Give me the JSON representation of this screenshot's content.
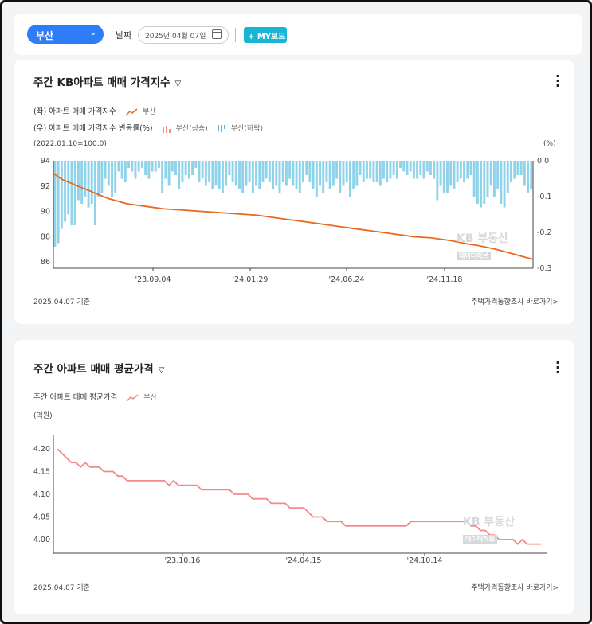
{
  "header": {
    "region": "부산",
    "date_label": "날짜",
    "date_value": "2025년 04월 07일",
    "mybtn": "+ MY보드"
  },
  "card1": {
    "title": "주간 KB아파트 매매 가격지수",
    "legend1": "(좌) 아파트 매매 가격지수",
    "legend1_name": "부산",
    "legend2": "(우) 아파트 매매 가격지수 변동률(%)",
    "legend2_up": "부산(상승)",
    "legend2_down": "부산(하락)",
    "left_unit": "(2022.01.10=100.0)",
    "right_unit": "(%)",
    "footer_date": "2025.04.07 기준",
    "footer_link": "주택가격동향조사 바로가기>",
    "watermark": "KB 부동산",
    "watermark_sub": "데이터허브"
  },
  "card2": {
    "title": "주간 아파트 매매 평균가격",
    "legend": "주간 아파트 매매 평균가격",
    "legend_name": "부산",
    "unit": "(억원)",
    "footer_date": "2025.04.07 기준",
    "footer_link": "주택가격동향조사 바로가기>",
    "watermark": "KB 부동산",
    "watermark_sub": "데이터허브"
  },
  "colors": {
    "line1": "#e86a1f",
    "bar": "#8fd3ea",
    "line2": "#f28a8a",
    "accent": "#2f7df6",
    "mybtn": "#16b6d4"
  },
  "chart_data": [
    {
      "type": "bar+line",
      "x_ticks": [
        "'23.09.04",
        "'24.01.29",
        "'24.06.24",
        "'24.11.18"
      ],
      "ylim_left": [
        85.5,
        94
      ],
      "yticks_left": [
        "94",
        "92",
        "90",
        "88",
        "86"
      ],
      "ylim_right": [
        -0.3,
        0.0
      ],
      "yticks_right": [
        "0.0",
        "-0.1",
        "-0.2",
        "-0.3"
      ],
      "line": [
        93.0,
        92.5,
        92.2,
        91.9,
        91.6,
        91.3,
        91.0,
        90.8,
        90.6,
        90.5,
        90.4,
        90.3,
        90.2,
        90.15,
        90.1,
        90.05,
        90.0,
        89.95,
        89.9,
        89.85,
        89.8,
        89.75,
        89.7,
        89.6,
        89.5,
        89.4,
        89.3,
        89.2,
        89.1,
        89.0,
        88.9,
        88.8,
        88.7,
        88.6,
        88.5,
        88.4,
        88.3,
        88.2,
        88.1,
        88.0,
        87.95,
        87.9,
        87.8,
        87.7,
        87.55,
        87.4,
        87.3,
        87.15,
        87.0,
        86.8,
        86.6,
        86.4,
        86.2
      ],
      "bars": [
        -0.24,
        -0.23,
        -0.19,
        -0.17,
        -0.15,
        -0.18,
        -0.18,
        -0.11,
        -0.12,
        -0.1,
        -0.13,
        -0.12,
        -0.18,
        -0.1,
        -0.09,
        -0.05,
        -0.07,
        -0.1,
        -0.09,
        -0.03,
        -0.05,
        -0.06,
        -0.02,
        -0.03,
        -0.05,
        -0.03,
        -0.02,
        -0.04,
        -0.05,
        -0.03,
        -0.03,
        -0.02,
        -0.09,
        -0.05,
        -0.07,
        -0.03,
        -0.04,
        -0.08,
        -0.06,
        -0.04,
        -0.05,
        -0.04,
        -0.02,
        -0.06,
        -0.05,
        -0.07,
        -0.06,
        -0.08,
        -0.07,
        -0.08,
        -0.09,
        -0.07,
        -0.04,
        -0.06,
        -0.07,
        -0.08,
        -0.09,
        -0.07,
        -0.06,
        -0.09,
        -0.07,
        -0.08,
        -0.06,
        -0.05,
        -0.06,
        -0.08,
        -0.07,
        -0.09,
        -0.06,
        -0.07,
        -0.05,
        -0.07,
        -0.08,
        -0.09,
        -0.06,
        -0.04,
        -0.06,
        -0.08,
        -0.1,
        -0.07,
        -0.09,
        -0.06,
        -0.08,
        -0.07,
        -0.05,
        -0.09,
        -0.07,
        -0.06,
        -0.1,
        -0.08,
        -0.07,
        -0.04,
        -0.06,
        -0.05,
        -0.05,
        -0.06,
        -0.06,
        -0.07,
        -0.05,
        -0.06,
        -0.05,
        -0.04,
        -0.05,
        -0.02,
        -0.03,
        -0.04,
        -0.03,
        -0.05,
        -0.05,
        -0.04,
        -0.05,
        -0.03,
        -0.04,
        -0.05,
        -0.11,
        -0.07,
        -0.09,
        -0.09,
        -0.07,
        -0.08,
        -0.06,
        -0.05,
        -0.06,
        -0.05,
        -0.04,
        -0.1,
        -0.12,
        -0.13,
        -0.12,
        -0.1,
        -0.07,
        -0.1,
        -0.08,
        -0.12,
        -0.13,
        -0.09,
        -0.06,
        -0.05,
        -0.04,
        -0.04,
        -0.07,
        -0.09,
        -0.08
      ]
    },
    {
      "type": "line",
      "x_ticks": [
        "'23.10.16",
        "'24.04.15",
        "'24.10.14"
      ],
      "ylim": [
        3.97,
        4.23
      ],
      "yticks": [
        "4.20",
        "4.15",
        "4.10",
        "4.05",
        "4.00"
      ],
      "values": [
        4.2,
        4.19,
        4.18,
        4.17,
        4.17,
        4.16,
        4.17,
        4.16,
        4.16,
        4.16,
        4.15,
        4.15,
        4.15,
        4.14,
        4.14,
        4.13,
        4.13,
        4.13,
        4.13,
        4.13,
        4.13,
        4.13,
        4.13,
        4.13,
        4.12,
        4.13,
        4.12,
        4.12,
        4.12,
        4.12,
        4.12,
        4.11,
        4.11,
        4.11,
        4.11,
        4.11,
        4.11,
        4.11,
        4.1,
        4.1,
        4.1,
        4.1,
        4.09,
        4.09,
        4.09,
        4.09,
        4.08,
        4.08,
        4.08,
        4.08,
        4.07,
        4.07,
        4.07,
        4.07,
        4.06,
        4.05,
        4.05,
        4.05,
        4.04,
        4.04,
        4.04,
        4.04,
        4.03,
        4.03,
        4.03,
        4.03,
        4.03,
        4.03,
        4.03,
        4.03,
        4.03,
        4.03,
        4.03,
        4.03,
        4.03,
        4.03,
        4.04,
        4.04,
        4.04,
        4.04,
        4.04,
        4.04,
        4.04,
        4.04,
        4.04,
        4.04,
        4.04,
        4.04,
        4.04,
        4.03,
        4.03,
        4.02,
        4.02,
        4.01,
        4.01,
        4.0,
        4.0,
        4.0,
        4.0,
        3.99,
        4.0,
        3.99,
        3.99,
        3.99,
        3.99
      ]
    }
  ]
}
